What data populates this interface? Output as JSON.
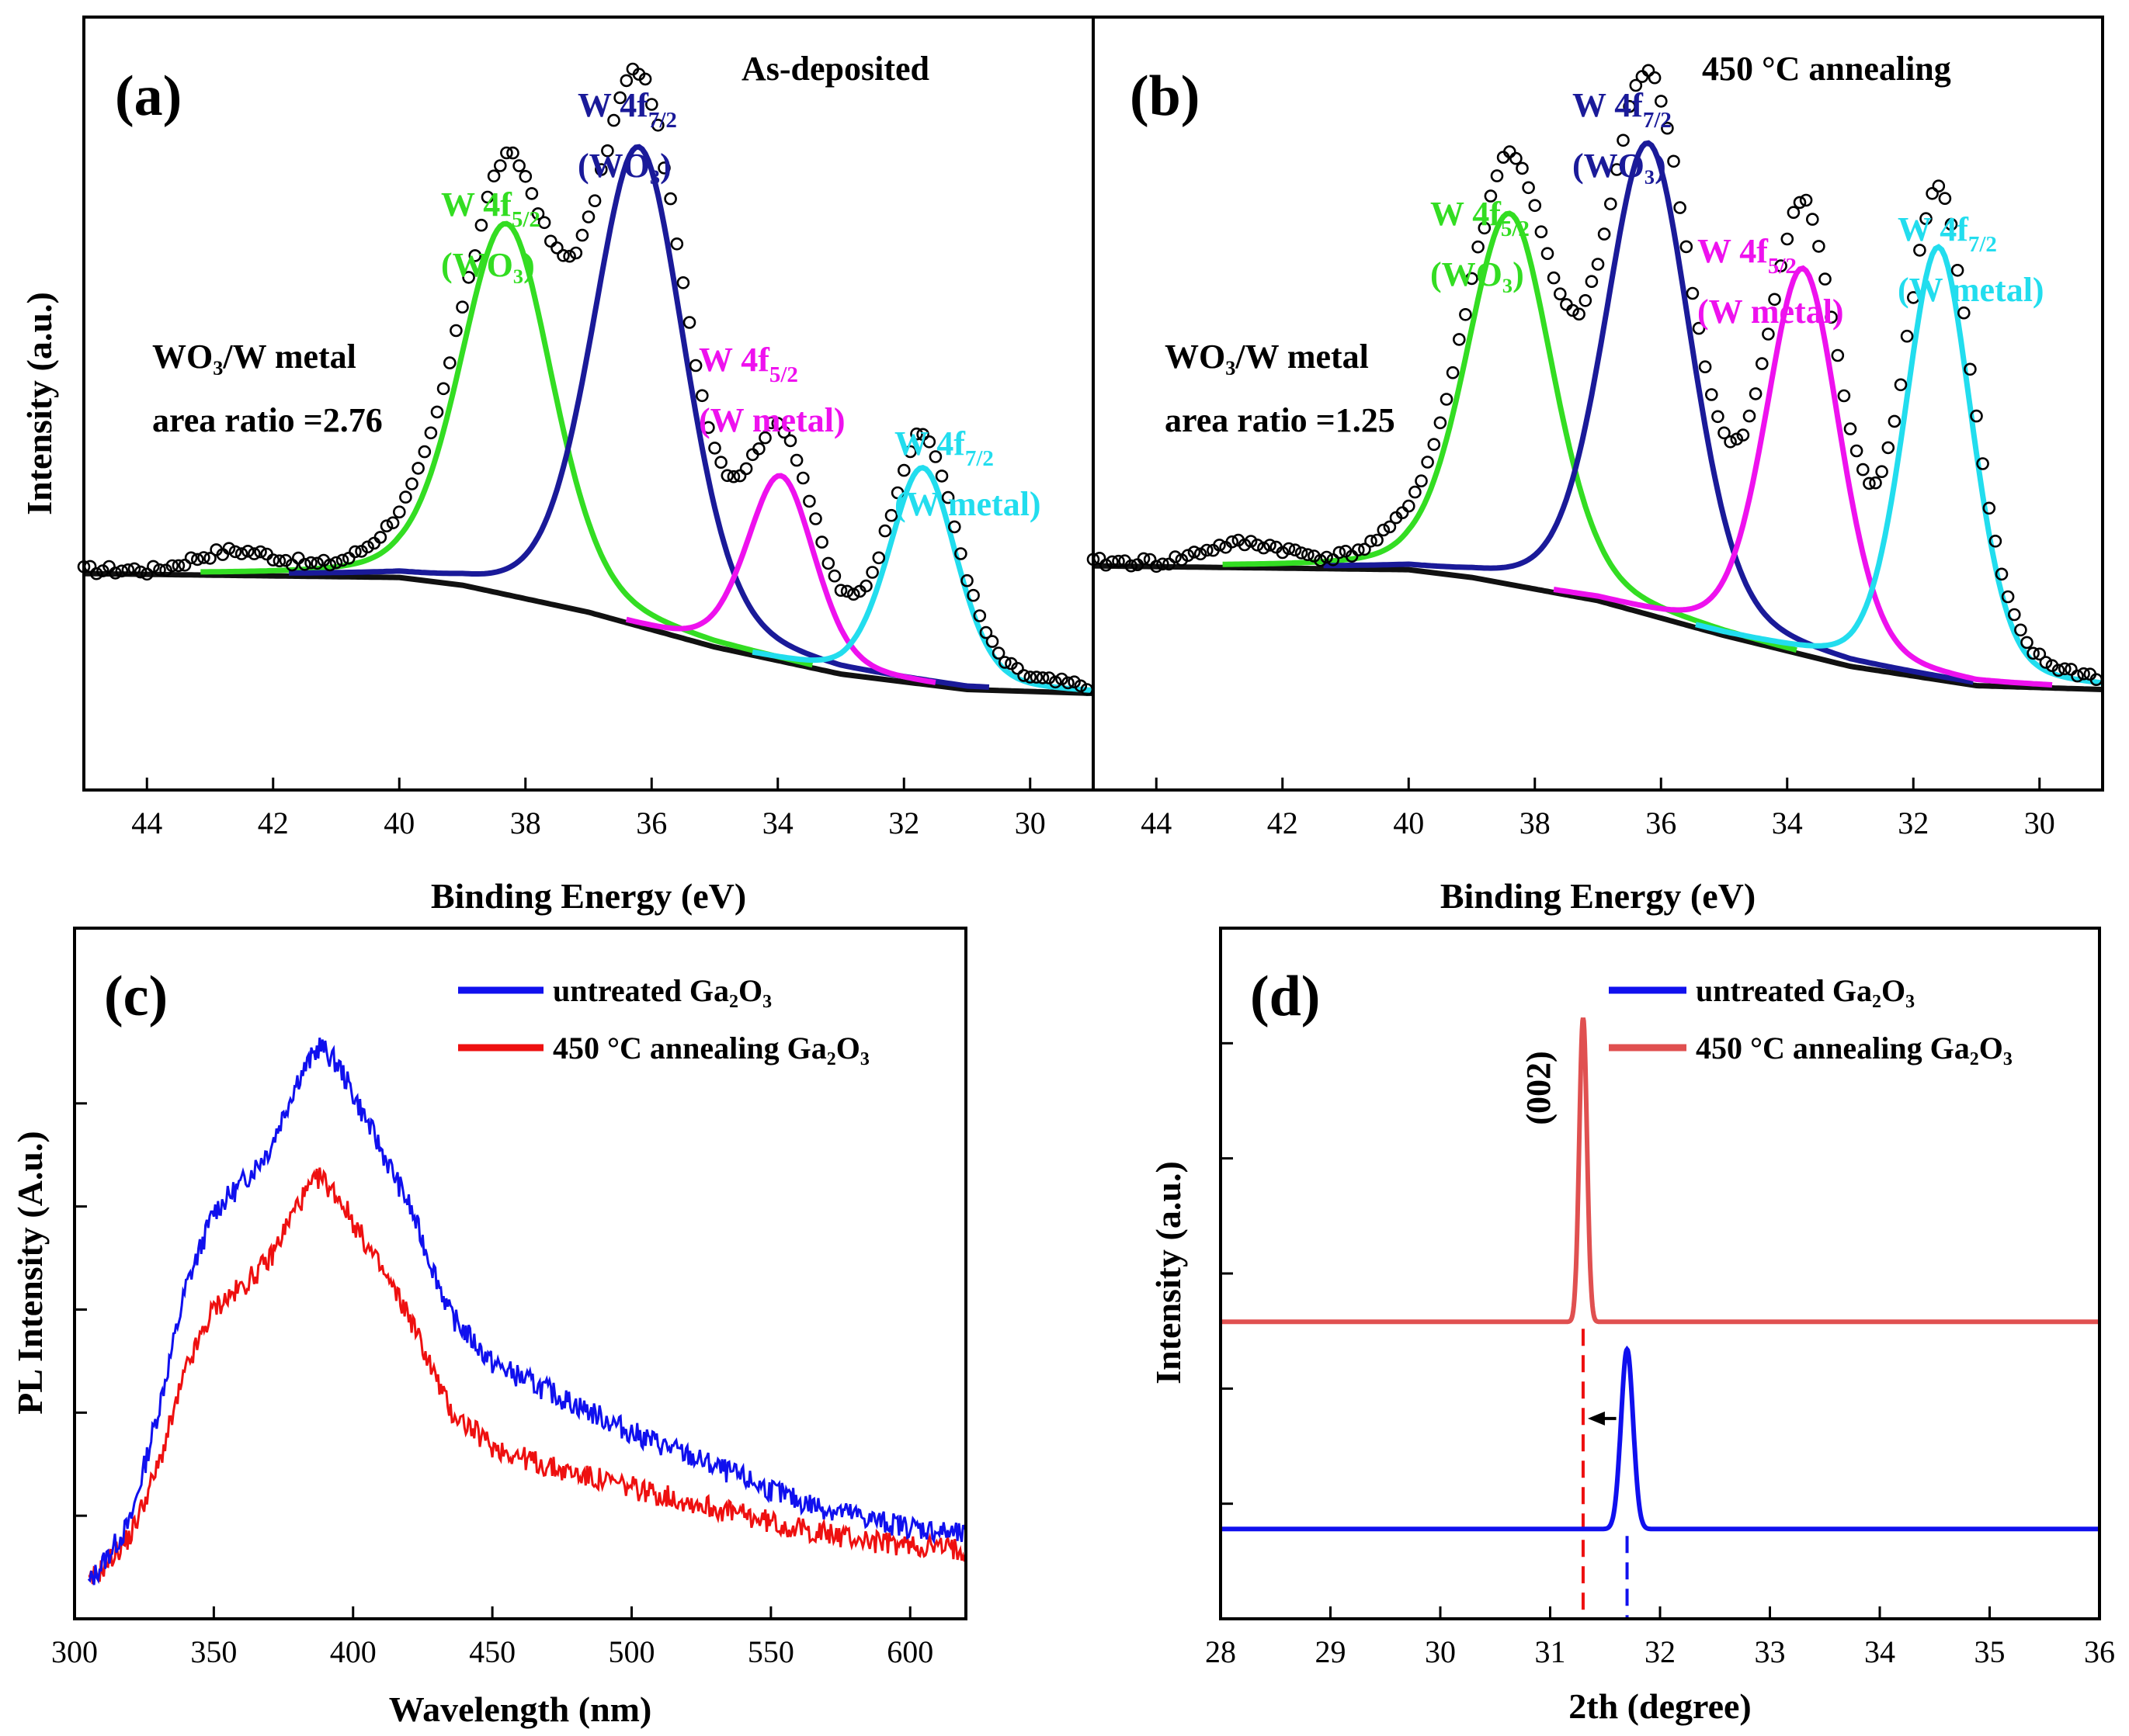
{
  "figure": {
    "panels": {
      "a": {
        "label": "(a)",
        "condition": "As-deposited",
        "ratio_line1": "WO₃/W metal",
        "ratio_line2": "area ratio =2.76"
      },
      "b": {
        "label": "(b)",
        "condition": "450 °C annealing",
        "ratio_line1": "WO₃/W metal",
        "ratio_line2": "area ratio =1.25"
      },
      "c": {
        "label": "(c)"
      },
      "d": {
        "label": "(d)",
        "peak_label": "(002)"
      }
    },
    "peak_labels": {
      "w4f52_wo3": {
        "main": "W 4f",
        "sub": "5/2",
        "line2": "(WO₃)"
      },
      "w4f72_wo3": {
        "main": "W 4f",
        "sub": "7/2",
        "line2": "(WO₃)"
      },
      "w4f52_metal": {
        "main": "W 4f",
        "sub": "5/2",
        "line2": "(W metal)"
      },
      "w4f72_metal": {
        "main": "W 4f",
        "sub": "7/2",
        "line2": "(W metal)"
      }
    }
  },
  "colors": {
    "w4f52_wo3": "#33dd22",
    "w4f72_wo3": "#1a1a99",
    "w4f52_metal": "#ee11ee",
    "w4f72_metal": "#22ddee",
    "background": "#111111",
    "untreated": "#1010ee",
    "annealed_pl": "#ee1010",
    "annealed_xrd": "#e05050"
  },
  "chart_data": [
    {
      "id": "a",
      "type": "scatter",
      "title": "As-deposited",
      "xlabel": "Binding Energy (eV)",
      "ylabel": "Intensity (a.u.)",
      "xlim": [
        45,
        29
      ],
      "ylim": [
        0,
        100
      ],
      "xticks": [
        44,
        42,
        40,
        38,
        36,
        34,
        32,
        30
      ],
      "baseline_profile": {
        "x": [
          45,
          40,
          39,
          37,
          35,
          33,
          31,
          29
        ],
        "y": [
          28,
          27.5,
          26.5,
          23,
          18.5,
          15,
          13,
          12.5
        ]
      },
      "background_drop": 15,
      "peaks": [
        {
          "name": "W 4f5/2 (WO3)",
          "center": 38.3,
          "height": 48,
          "width": 0.75
        },
        {
          "name": "W 4f7/2 (WO3)",
          "center": 36.2,
          "height": 62,
          "width": 0.75
        },
        {
          "name": "W 4f5/2 (W metal)",
          "center": 33.95,
          "height": 24,
          "width": 0.55
        },
        {
          "name": "W 4f7/2 (W metal)",
          "center": 31.7,
          "height": 28,
          "width": 0.55
        }
      ],
      "data_points_scale": 1.1
    },
    {
      "id": "b",
      "type": "scatter",
      "title": "450 °C annealing",
      "xlabel": "Binding Energy (eV)",
      "ylabel": "",
      "xlim": [
        45,
        29
      ],
      "ylim": [
        0,
        100
      ],
      "xticks": [
        44,
        42,
        40,
        38,
        36,
        34,
        32,
        30
      ],
      "baseline_profile": {
        "x": [
          45,
          40,
          39,
          37,
          35,
          33,
          31,
          29
        ],
        "y": [
          29,
          28.5,
          27.5,
          24.5,
          20,
          16,
          13.5,
          13
        ]
      },
      "background_drop": 15,
      "peaks": [
        {
          "name": "W 4f5/2 (WO3)",
          "center": 38.4,
          "height": 48,
          "width": 0.7
        },
        {
          "name": "W 4f7/2 (WO3)",
          "center": 36.2,
          "height": 61,
          "width": 0.7
        },
        {
          "name": "W 4f5/2 (W metal)",
          "center": 33.75,
          "height": 50,
          "width": 0.6
        },
        {
          "name": "W 4f7/2 (W metal)",
          "center": 31.6,
          "height": 56,
          "width": 0.55
        }
      ],
      "data_points_scale": 1.1
    },
    {
      "id": "c",
      "type": "line",
      "xlabel": "Wavelength (nm)",
      "ylabel": "PL Intensity (A.u.)",
      "xlim": [
        300,
        620
      ],
      "ylim": [
        0,
        100
      ],
      "xticks": [
        300,
        350,
        400,
        450,
        500,
        550,
        600
      ],
      "series": [
        {
          "name": "untreated Ga₂O₃",
          "x": [
            305,
            320,
            330,
            340,
            350,
            360,
            370,
            380,
            388,
            395,
            405,
            420,
            435,
            450,
            470,
            500,
            530,
            560,
            590,
            620
          ],
          "y": [
            5,
            14,
            30,
            48,
            59,
            63,
            68,
            78,
            83,
            80,
            72,
            60,
            44,
            37,
            33,
            27,
            22,
            17,
            14,
            12
          ]
        },
        {
          "name": "450 °C annealing Ga₂O₃",
          "x": [
            305,
            320,
            330,
            340,
            350,
            360,
            370,
            380,
            388,
            395,
            405,
            420,
            435,
            450,
            470,
            500,
            530,
            560,
            590,
            620
          ],
          "y": [
            5,
            12,
            22,
            36,
            45,
            48,
            52,
            60,
            64,
            61,
            54,
            44,
            30,
            25,
            22,
            19,
            16,
            13,
            11,
            10
          ]
        }
      ]
    },
    {
      "id": "d",
      "type": "line",
      "xlabel": "2th (degree)",
      "ylabel": "Intensity (a.u.)",
      "xlim": [
        28,
        36
      ],
      "ylim": [
        0,
        100
      ],
      "xticks": [
        28,
        29,
        30,
        31,
        32,
        33,
        34,
        35,
        36
      ],
      "series": [
        {
          "name": "untreated Ga₂O₃",
          "peak_x": 31.7,
          "baseline": 13,
          "peak_top": 39
        },
        {
          "name": "450 °C annealing Ga₂O₃",
          "peak_x": 31.3,
          "baseline": 43,
          "peak_top": 87
        }
      ],
      "reference_lines": [
        31.3,
        31.7
      ],
      "annotation": "(002)"
    }
  ]
}
